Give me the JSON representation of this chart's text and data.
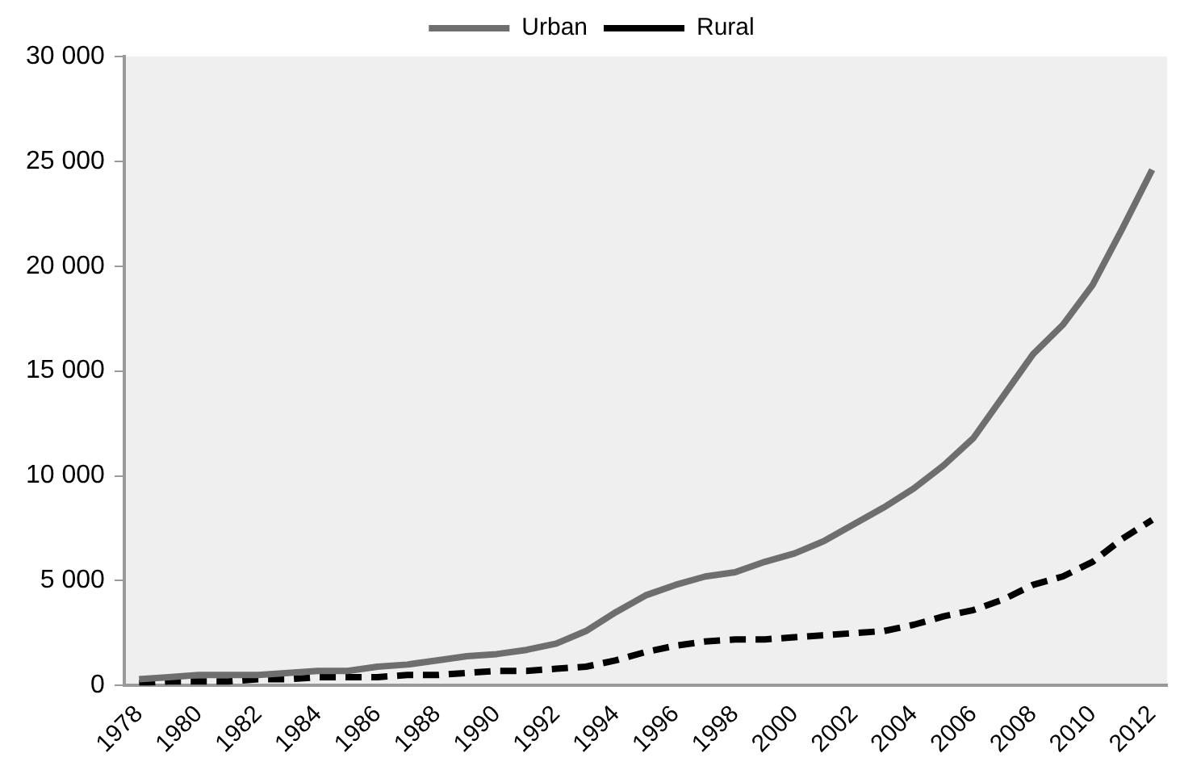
{
  "chart_data": {
    "type": "line",
    "categories": [
      "1978",
      null,
      "1980",
      null,
      "1982",
      null,
      "1984",
      null,
      "1986",
      null,
      "1988",
      null,
      "1990",
      null,
      "1992",
      null,
      "1994",
      null,
      "1996",
      null,
      "1998",
      null,
      "2000",
      null,
      "2002",
      null,
      "2004",
      null,
      "2006",
      null,
      "2008",
      null,
      "2010",
      null,
      "2012"
    ],
    "series": [
      {
        "name": "Urban",
        "color": "#6e6e6e",
        "line_style": "solid",
        "values": [
          300,
          400,
          500,
          500,
          500,
          600,
          700,
          700,
          900,
          1000,
          1200,
          1400,
          1500,
          1700,
          2000,
          2600,
          3500,
          4300,
          4800,
          5200,
          5400,
          5900,
          6300,
          6900,
          7700,
          8500,
          9400,
          10500,
          11800,
          13800,
          15800,
          17200,
          19100,
          21800,
          24600
        ]
      },
      {
        "name": "Rural",
        "color": "#000000",
        "line_style": "dashed",
        "values": [
          100,
          200,
          200,
          200,
          300,
          300,
          400,
          400,
          400,
          500,
          500,
          600,
          700,
          700,
          800,
          900,
          1200,
          1600,
          1900,
          2100,
          2200,
          2200,
          2300,
          2400,
          2500,
          2600,
          2900,
          3300,
          3600,
          4100,
          4800,
          5200,
          5900,
          7000,
          7900
        ]
      }
    ],
    "ylim": [
      0,
      30000
    ],
    "yticks": [
      {
        "value": 0,
        "label": "0"
      },
      {
        "value": 5000,
        "label": "5 000"
      },
      {
        "value": 10000,
        "label": "10 000"
      },
      {
        "value": 15000,
        "label": "15 000"
      },
      {
        "value": 20000,
        "label": "20 000"
      },
      {
        "value": 25000,
        "label": "25 000"
      },
      {
        "value": 30000,
        "label": "30 000"
      }
    ],
    "grid": false,
    "legend": "top",
    "marker": "none"
  }
}
